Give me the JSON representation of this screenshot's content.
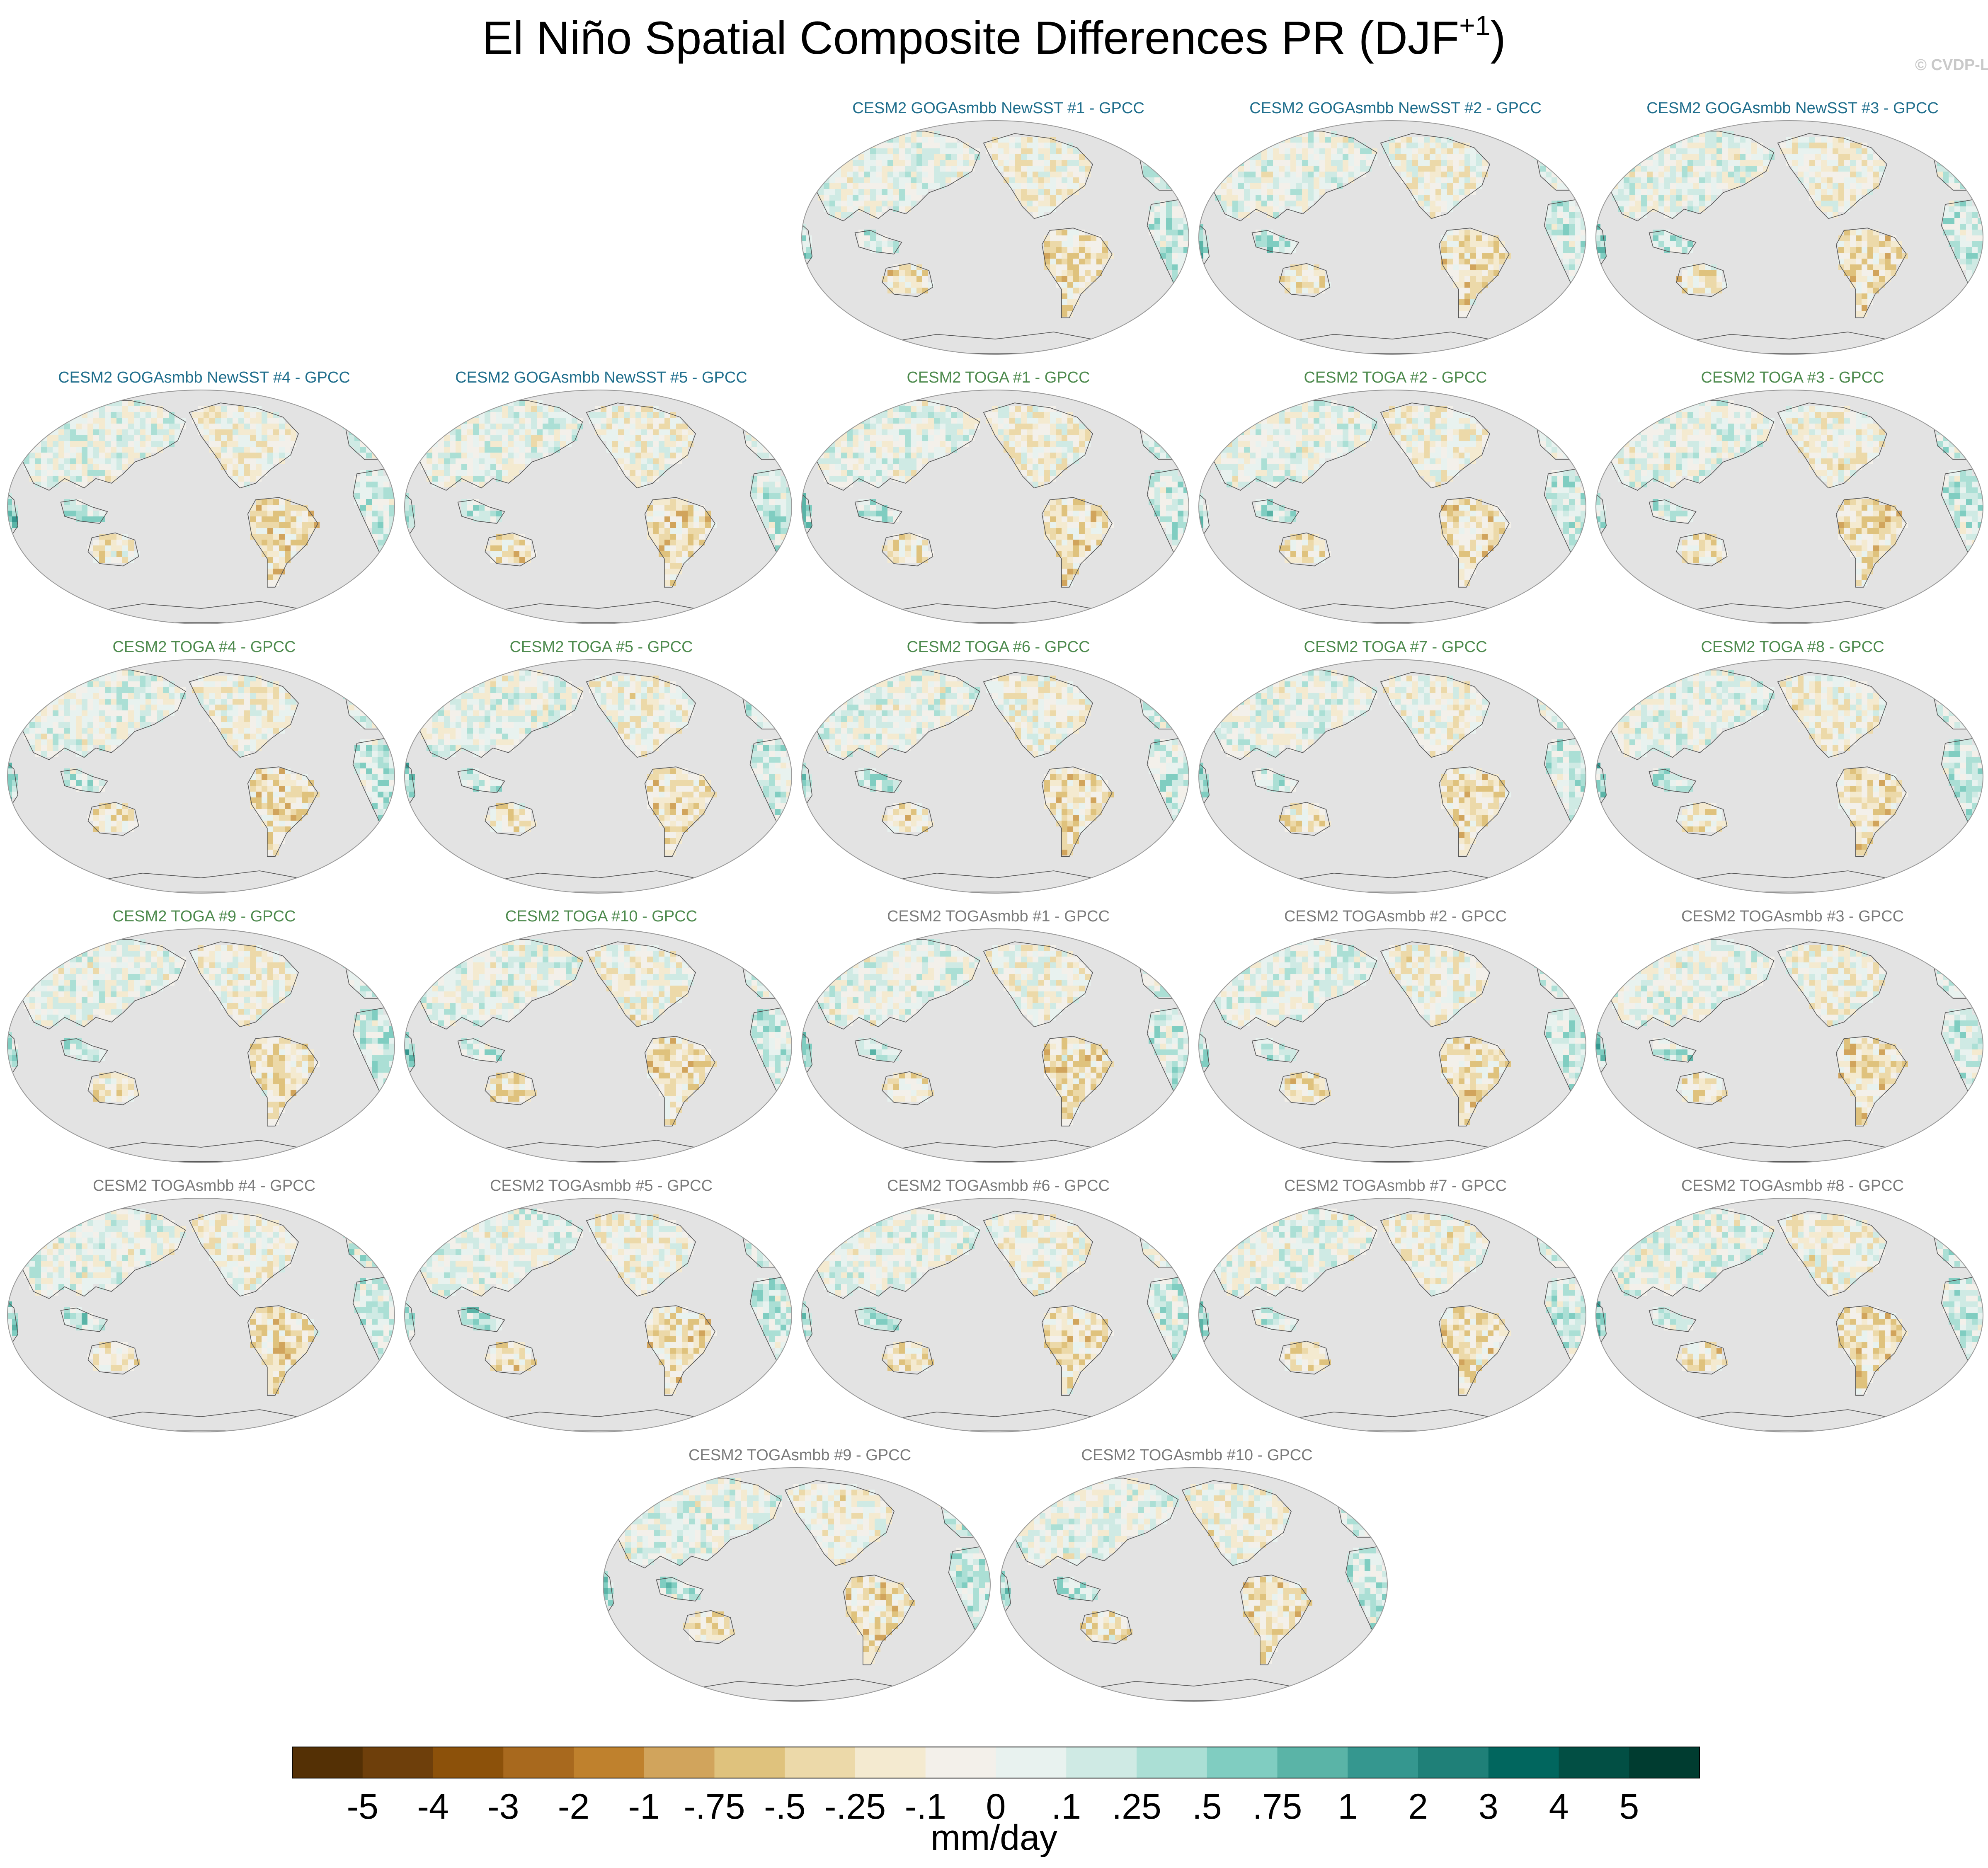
{
  "figure": {
    "title_main": "El Niño Spatial Composite Differences PR (DJF",
    "title_sup": "+1",
    "title_close": ")",
    "credit": "© CVDP-LE"
  },
  "colors": {
    "group_gogasmbb": "#1f6e8c",
    "group_toga": "#4d8a4d",
    "group_togasmbb": "#7a7a7a",
    "ocean": "#e3e3e3",
    "coast": "#555555"
  },
  "panels": [
    {
      "title": "CESM2 GOGAsmbb NewSST #1 - GPCC",
      "group": "gogasmbb",
      "row": 0,
      "col": 2
    },
    {
      "title": "CESM2 GOGAsmbb NewSST #2 - GPCC",
      "group": "gogasmbb",
      "row": 0,
      "col": 3
    },
    {
      "title": "CESM2 GOGAsmbb NewSST #3 - GPCC",
      "group": "gogasmbb",
      "row": 0,
      "col": 4
    },
    {
      "title": "CESM2 GOGAsmbb NewSST #4 - GPCC",
      "group": "gogasmbb",
      "row": 1,
      "col": 0
    },
    {
      "title": "CESM2 GOGAsmbb NewSST #5 - GPCC",
      "group": "gogasmbb",
      "row": 1,
      "col": 1
    },
    {
      "title": "CESM2 TOGA #1 - GPCC",
      "group": "toga",
      "row": 1,
      "col": 2
    },
    {
      "title": "CESM2 TOGA #2 - GPCC",
      "group": "toga",
      "row": 1,
      "col": 3
    },
    {
      "title": "CESM2 TOGA #3 - GPCC",
      "group": "toga",
      "row": 1,
      "col": 4
    },
    {
      "title": "CESM2 TOGA #4 - GPCC",
      "group": "toga",
      "row": 2,
      "col": 0
    },
    {
      "title": "CESM2 TOGA #5 - GPCC",
      "group": "toga",
      "row": 2,
      "col": 1
    },
    {
      "title": "CESM2 TOGA #6 - GPCC",
      "group": "toga",
      "row": 2,
      "col": 2
    },
    {
      "title": "CESM2 TOGA #7 - GPCC",
      "group": "toga",
      "row": 2,
      "col": 3
    },
    {
      "title": "CESM2 TOGA #8 - GPCC",
      "group": "toga",
      "row": 2,
      "col": 4
    },
    {
      "title": "CESM2 TOGA #9 - GPCC",
      "group": "toga",
      "row": 3,
      "col": 0
    },
    {
      "title": "CESM2 TOGA #10 - GPCC",
      "group": "toga",
      "row": 3,
      "col": 1
    },
    {
      "title": "CESM2 TOGAsmbb #1 - GPCC",
      "group": "togasmbb",
      "row": 3,
      "col": 2
    },
    {
      "title": "CESM2 TOGAsmbb #2 - GPCC",
      "group": "togasmbb",
      "row": 3,
      "col": 3
    },
    {
      "title": "CESM2 TOGAsmbb #3 - GPCC",
      "group": "togasmbb",
      "row": 3,
      "col": 4
    },
    {
      "title": "CESM2 TOGAsmbb #4 - GPCC",
      "group": "togasmbb",
      "row": 4,
      "col": 0
    },
    {
      "title": "CESM2 TOGAsmbb #5 - GPCC",
      "group": "togasmbb",
      "row": 4,
      "col": 1
    },
    {
      "title": "CESM2 TOGAsmbb #6 - GPCC",
      "group": "togasmbb",
      "row": 4,
      "col": 2
    },
    {
      "title": "CESM2 TOGAsmbb #7 - GPCC",
      "group": "togasmbb",
      "row": 4,
      "col": 3
    },
    {
      "title": "CESM2 TOGAsmbb #8 - GPCC",
      "group": "togasmbb",
      "row": 4,
      "col": 4
    },
    {
      "title": "CESM2 TOGAsmbb #9 - GPCC",
      "group": "togasmbb",
      "row": 5,
      "col": 1.5
    },
    {
      "title": "CESM2 TOGAsmbb #10 - GPCC",
      "group": "togasmbb",
      "row": 5,
      "col": 2.5
    }
  ],
  "colorbar": {
    "labels": [
      "-5",
      "-4",
      "-3",
      "-2",
      "-1",
      "-.75",
      "-.5",
      "-.25",
      "-.1",
      "0",
      ".1",
      ".25",
      ".5",
      ".75",
      "1",
      "2",
      "3",
      "4",
      "5"
    ],
    "colors": [
      "#543005",
      "#6e3f0b",
      "#8c510a",
      "#a8691e",
      "#bf812d",
      "#d1a45c",
      "#dfc27d",
      "#ecd9a9",
      "#f4ead0",
      "#f3f0ea",
      "#e8f2ef",
      "#cfeae4",
      "#abdfd5",
      "#80cdc1",
      "#5ab4a7",
      "#35978f",
      "#1f8078",
      "#01665e",
      "#024f44",
      "#003c30"
    ],
    "unit": "mm/day"
  }
}
